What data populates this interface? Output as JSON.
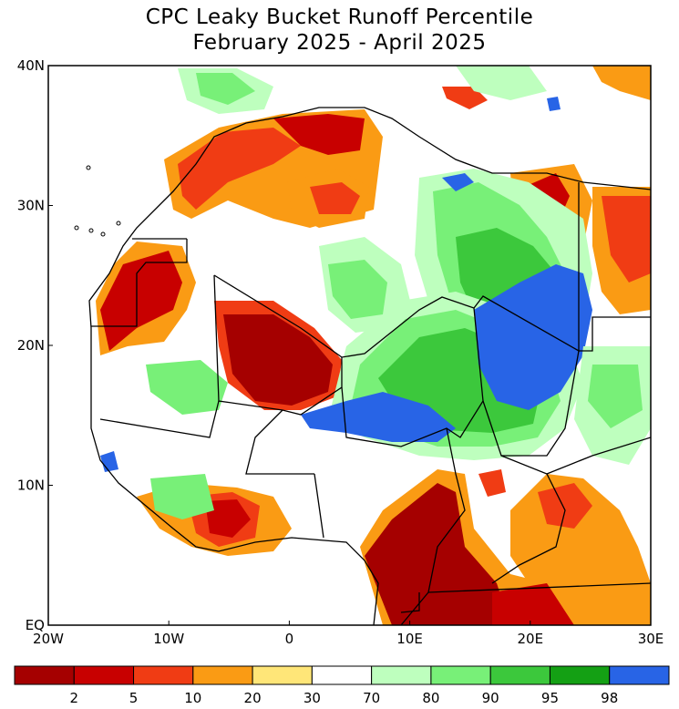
{
  "title_line1": "CPC Leaky Bucket Runoff Percentile",
  "title_line2": "February 2025 - April 2025",
  "lat_labels": [
    {
      "text": "40N",
      "value": 40
    },
    {
      "text": "30N",
      "value": 30
    },
    {
      "text": "20N",
      "value": 20
    },
    {
      "text": "10N",
      "value": 10
    },
    {
      "text": "EQ",
      "value": 0
    }
  ],
  "lon_labels": [
    {
      "text": "20W",
      "value": -20
    },
    {
      "text": "10W",
      "value": -10
    },
    {
      "text": "0",
      "value": 0
    },
    {
      "text": "10E",
      "value": 10
    },
    {
      "text": "20E",
      "value": 20
    },
    {
      "text": "30E",
      "value": 30
    }
  ],
  "legend": {
    "colors": [
      "#a50000",
      "#c80000",
      "#f03c14",
      "#fa9b14",
      "#ffe678",
      "#ffffff",
      "#beffbe",
      "#78f078",
      "#3cc83c",
      "#14a014",
      "#2864e6"
    ],
    "ticks": [
      "2",
      "5",
      "10",
      "20",
      "30",
      "70",
      "80",
      "90",
      "95",
      "98"
    ]
  },
  "palette": {
    "dark_red": "#a50000",
    "red": "#c80000",
    "orange_red": "#f03c14",
    "orange": "#fa9b14",
    "yellow": "#ffe678",
    "white": "#ffffff",
    "light_green": "#beffbe",
    "green": "#78f078",
    "mid_green": "#3cc83c",
    "dark_green": "#14a014",
    "blue": "#2864e6"
  }
}
